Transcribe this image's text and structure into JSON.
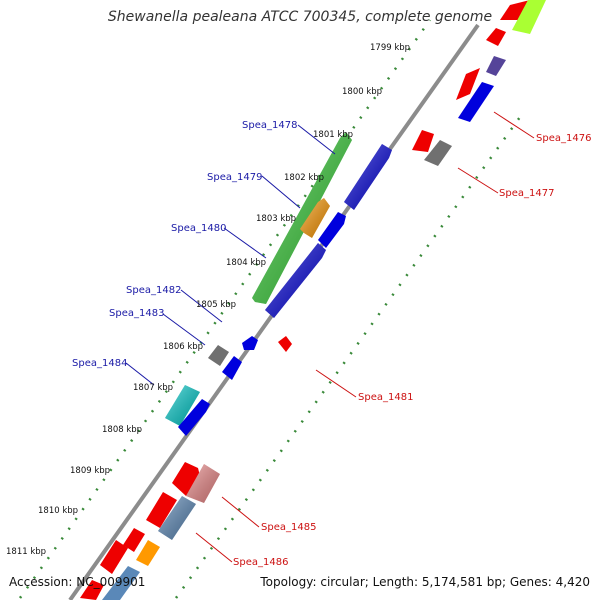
{
  "title": "Shewanella pealeana ATCC 700345, complete genome",
  "footer": {
    "accession": "Accession: NC_009901",
    "stats": "Topology: circular; Length: 5,174,581 bp; Genes: 4,420"
  },
  "colors": {
    "backbone": "#8c8c8c",
    "tick": "#3a8a3a",
    "forward_label": "#1a1aa6",
    "reverse_label": "#cc1111"
  },
  "ticks": [
    "1799 kbp",
    "1800 kbp",
    "1801 kbp",
    "1802 kbp",
    "1803 kbp",
    "1804 kbp",
    "1805 kbp",
    "1806 kbp",
    "1807 kbp",
    "1808 kbp",
    "1809 kbp",
    "1810 kbp",
    "1811 kbp"
  ],
  "labels": {
    "forward": [
      "Spea_1478",
      "Spea_1479",
      "Spea_1480",
      "Spea_1482",
      "Spea_1483",
      "Spea_1484"
    ],
    "reverse": [
      "Spea_1476",
      "Spea_1477",
      "Spea_1481",
      "Spea_1485",
      "Spea_1486"
    ]
  }
}
